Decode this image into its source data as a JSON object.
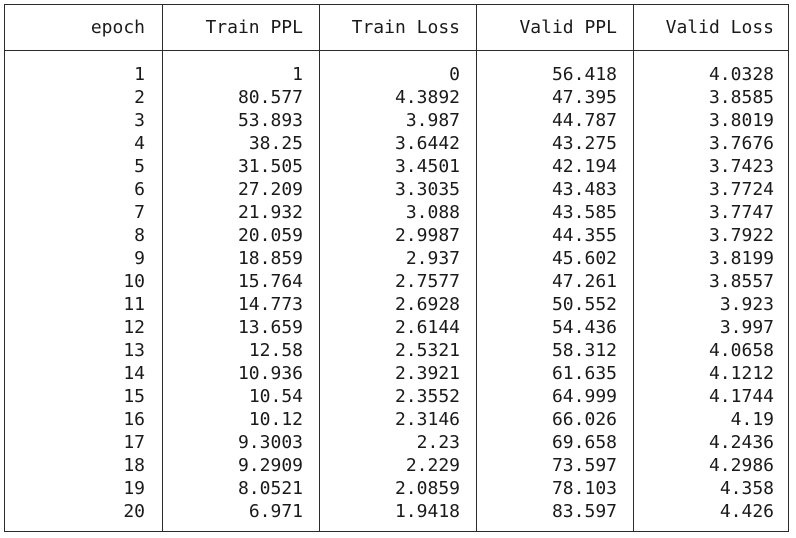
{
  "table": {
    "headers": [
      "epoch",
      "Train PPL",
      "Train Loss",
      "Valid PPL",
      "Valid Loss"
    ],
    "rows": [
      [
        "1",
        "1",
        "0",
        "56.418",
        "4.0328"
      ],
      [
        "2",
        "80.577",
        "4.3892",
        "47.395",
        "3.8585"
      ],
      [
        "3",
        "53.893",
        "3.987",
        "44.787",
        "3.8019"
      ],
      [
        "4",
        "38.25",
        "3.6442",
        "43.275",
        "3.7676"
      ],
      [
        "5",
        "31.505",
        "3.4501",
        "42.194",
        "3.7423"
      ],
      [
        "6",
        "27.209",
        "3.3035",
        "43.483",
        "3.7724"
      ],
      [
        "7",
        "21.932",
        "3.088",
        "43.585",
        "3.7747"
      ],
      [
        "8",
        "20.059",
        "2.9987",
        "44.355",
        "3.7922"
      ],
      [
        "9",
        "18.859",
        "2.937",
        "45.602",
        "3.8199"
      ],
      [
        "10",
        "15.764",
        "2.7577",
        "47.261",
        "3.8557"
      ],
      [
        "11",
        "14.773",
        "2.6928",
        "50.552",
        "3.923"
      ],
      [
        "12",
        "13.659",
        "2.6144",
        "54.436",
        "3.997"
      ],
      [
        "13",
        "12.58",
        "2.5321",
        "58.312",
        "4.0658"
      ],
      [
        "14",
        "10.936",
        "2.3921",
        "61.635",
        "4.1212"
      ],
      [
        "15",
        "10.54",
        "2.3552",
        "64.999",
        "4.1744"
      ],
      [
        "16",
        "10.12",
        "2.3146",
        "66.026",
        "4.19"
      ],
      [
        "17",
        "9.3003",
        "2.23",
        "69.658",
        "4.2436"
      ],
      [
        "18",
        "9.2909",
        "2.229",
        "73.597",
        "4.2986"
      ],
      [
        "19",
        "8.0521",
        "2.0859",
        "78.103",
        "4.358"
      ],
      [
        "20",
        "6.971",
        "1.9418",
        "83.597",
        "4.426"
      ]
    ]
  }
}
